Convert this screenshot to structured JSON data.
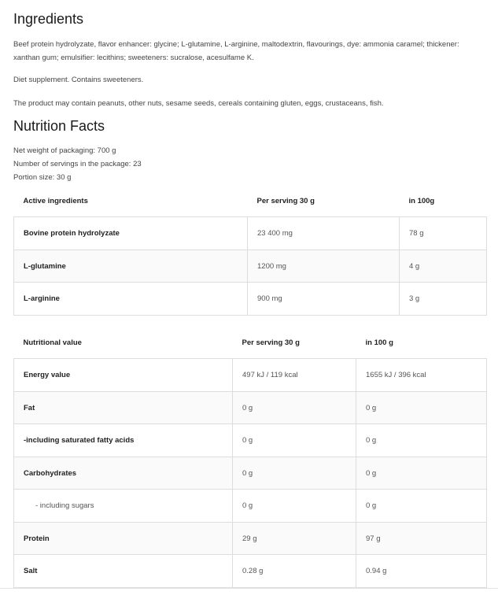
{
  "ingredients": {
    "title": "Ingredients",
    "text": "Beef protein hydrolyzate, flavor enhancer: glycine; L-glutamine, L-arginine, maltodextrin, flavourings, dye: ammonia caramel; thickener: xanthan gum; emulsifier: lecithins; sweeteners: sucralose, acesulfame K.",
    "diet": "Diet supplement. Contains sweeteners.",
    "allergens": "The product may contain peanuts, other nuts, sesame seeds, cereals containing gluten, eggs, crustaceans, fish."
  },
  "nutrition": {
    "title": "Nutrition Facts",
    "net_weight": "Net weight of packaging: 700 g",
    "servings": "Number of servings in the package: 23",
    "portion": "Portion size: 30 g"
  },
  "active_table": {
    "headers": [
      "Active ingredients",
      "Per serving 30 g",
      "in 100g"
    ],
    "rows": [
      [
        "Bovine protein hydrolyzate",
        "23 400 mg",
        "78 g"
      ],
      [
        "L-glutamine",
        "1200 mg",
        "4 g"
      ],
      [
        "L-arginine",
        "900 mg",
        "3 g"
      ]
    ]
  },
  "nutrition_table": {
    "headers": [
      "Nutritional value",
      "Per serving 30 g",
      "in 100 g"
    ],
    "rows": [
      [
        "Energy value",
        "497 kJ / 119 kcal",
        "1655 kJ / 396 kcal"
      ],
      [
        "Fat",
        "0 g",
        "0 g"
      ],
      [
        "-including saturated fatty acids",
        "0 g",
        "0 g"
      ],
      [
        "Carbohydrates",
        "0 g",
        "0 g"
      ],
      [
        "- including sugars",
        "0 g",
        "0 g"
      ],
      [
        "Protein",
        "29 g",
        "97 g"
      ],
      [
        "Salt",
        "0.28 g",
        "0.94 g"
      ]
    ]
  }
}
